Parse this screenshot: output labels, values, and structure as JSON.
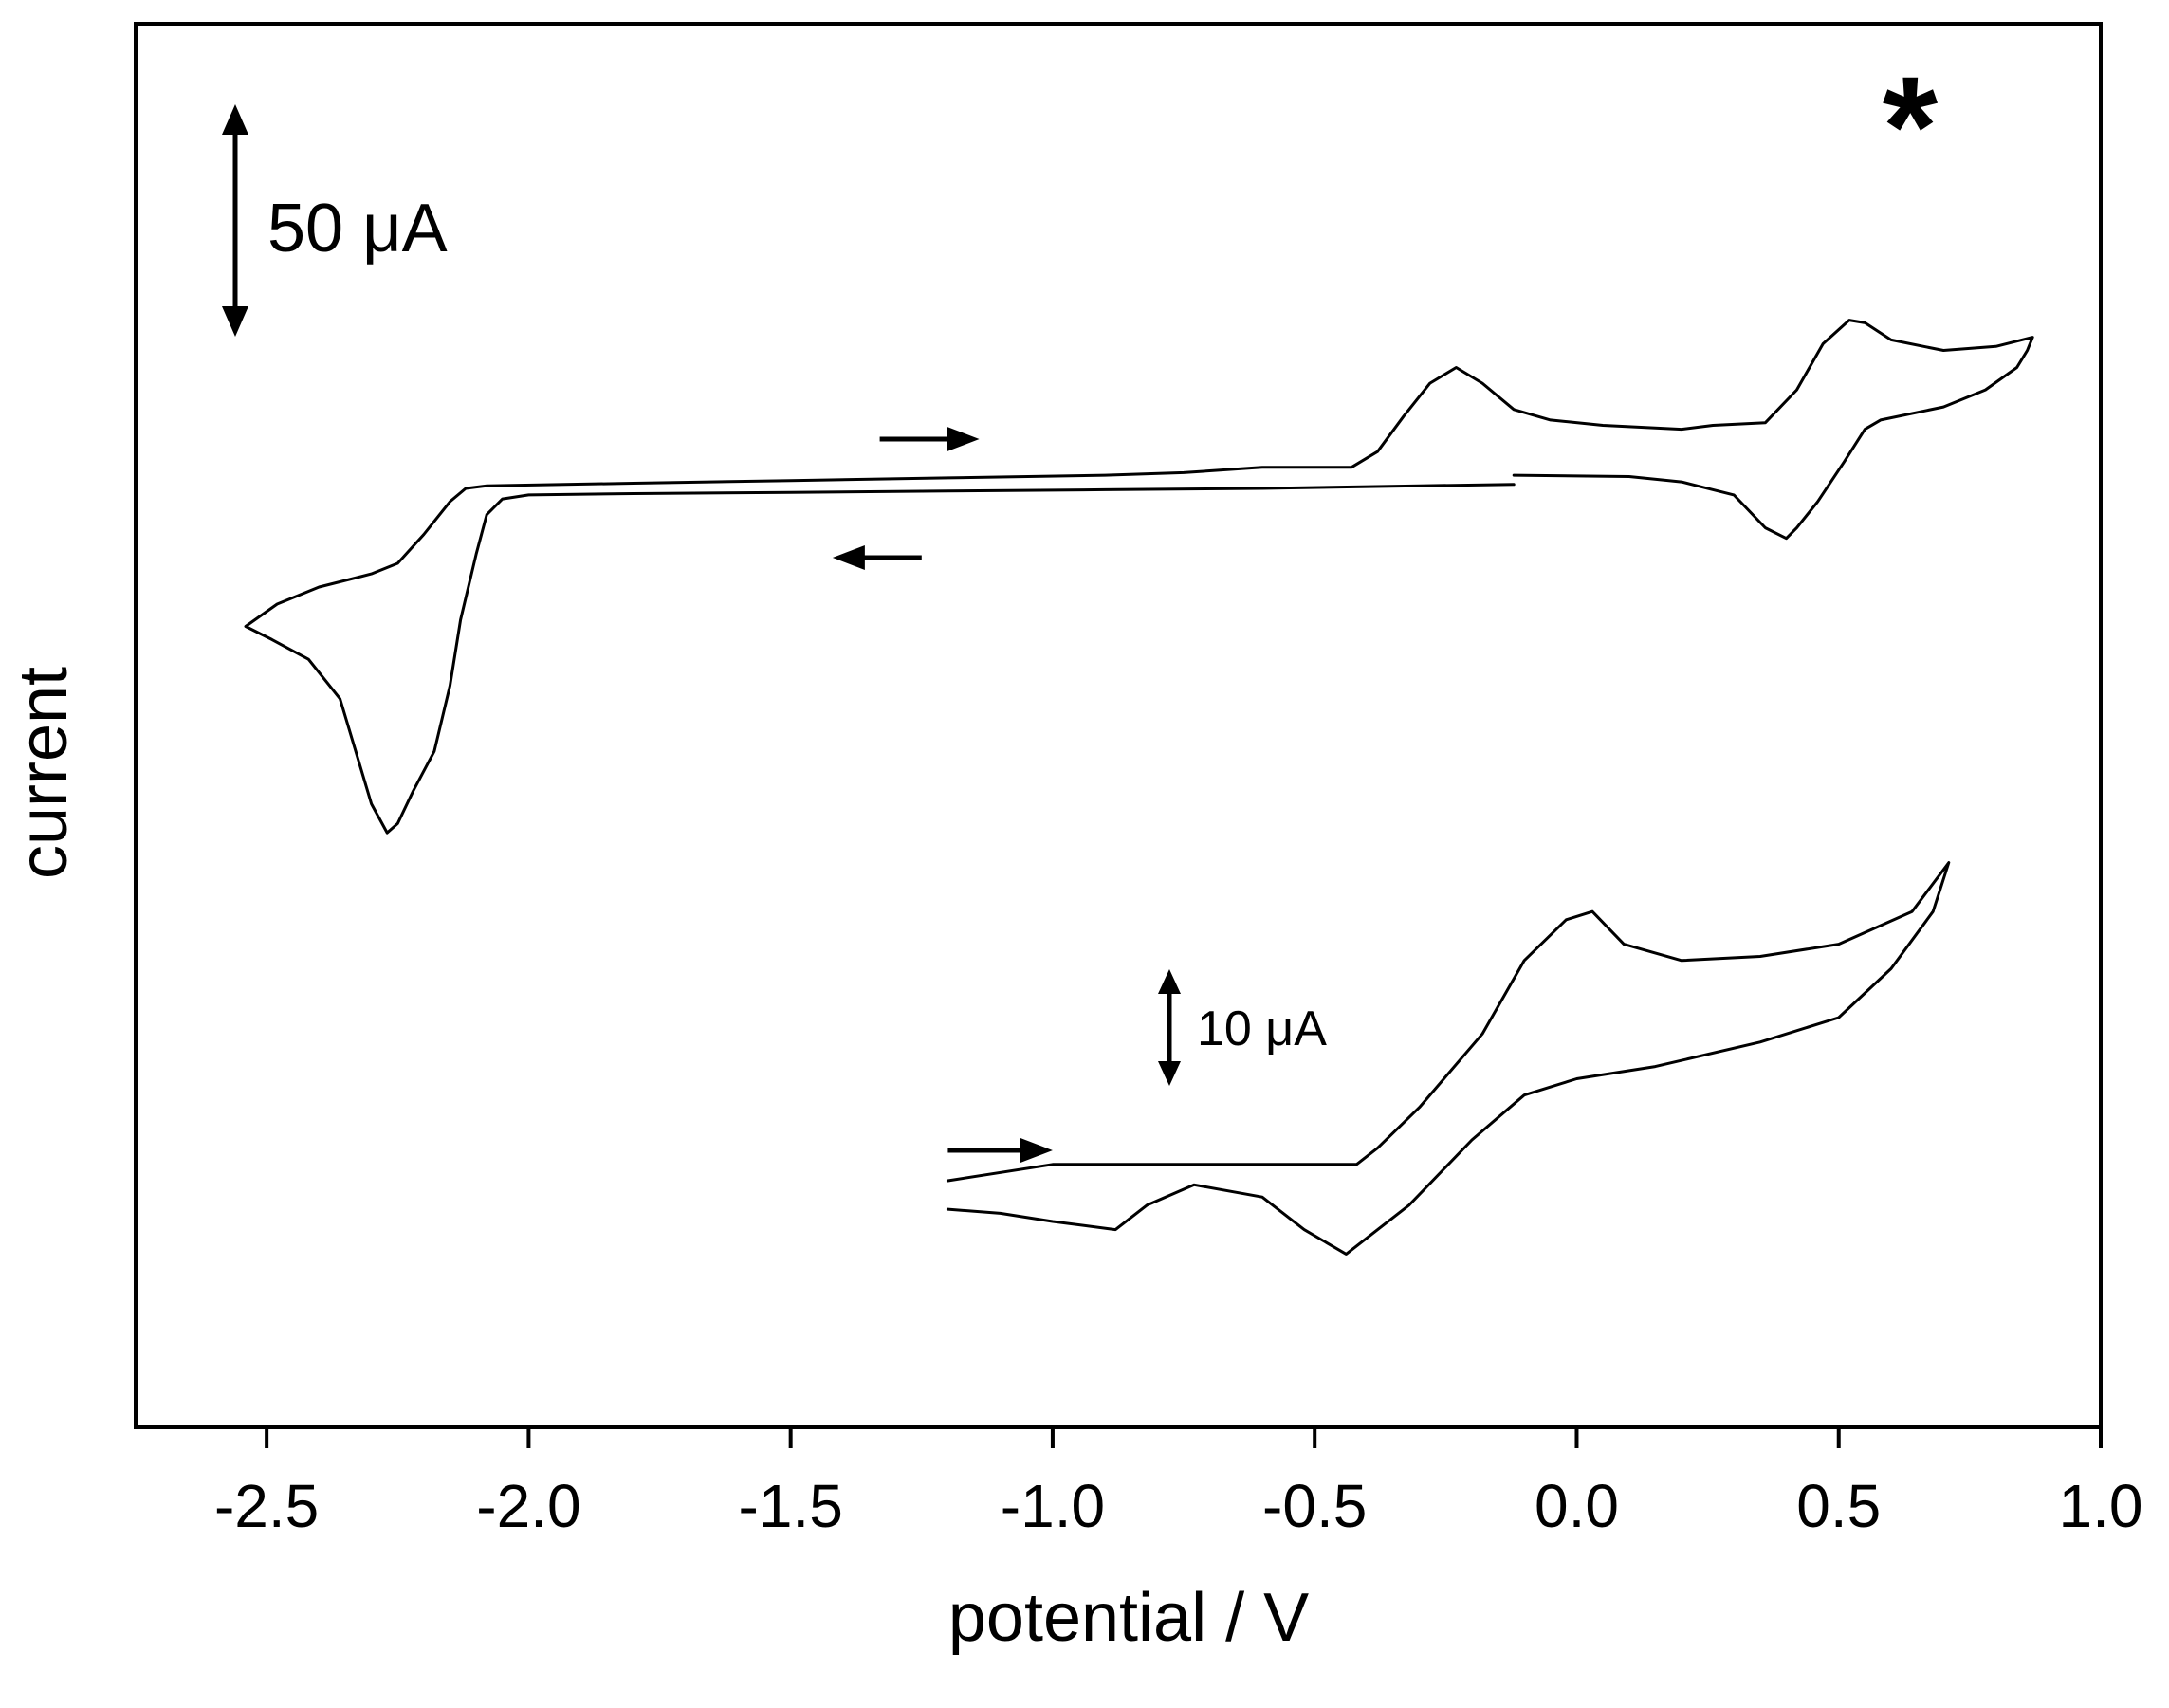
{
  "chart_data": {
    "type": "line",
    "xlabel": "potential / V",
    "ylabel": "current",
    "xlim": [
      -2.75,
      1.0
    ],
    "xticks": [
      "-2.5",
      "-2.0",
      "-1.5",
      "-1.0",
      "-0.5",
      "0.0",
      "0.5",
      "1.0"
    ],
    "y_ticks_shown": false,
    "grid": false,
    "scale_bars": [
      {
        "label": "50 μA",
        "applies_to": "upper trace"
      },
      {
        "label": "10 μA",
        "applies_to": "lower trace"
      }
    ],
    "annotations": [
      {
        "text": "*",
        "x": 0.6,
        "note": "marks the oxidation peak near 0.52 V on the upper trace"
      }
    ],
    "arrows": [
      {
        "direction": "right",
        "trace": "upper",
        "x_from": -1.33,
        "x_to": -1.14
      },
      {
        "direction": "left",
        "trace": "upper",
        "x_from": -1.42,
        "x_to": -1.25
      },
      {
        "direction": "right",
        "trace": "lower",
        "x_from": -1.2,
        "x_to": -1.0
      }
    ],
    "series": [
      {
        "points": [
          [
            -0.12,
            3
          ],
          [
            -0.3,
            2
          ],
          [
            -0.6,
            0
          ],
          [
            -0.9,
            -1
          ],
          [
            -1.2,
            -2
          ],
          [
            -1.5,
            -3
          ],
          [
            -1.8,
            -4
          ],
          [
            -2.0,
            -5
          ],
          [
            -2.05,
            -8
          ],
          [
            -2.08,
            -20
          ],
          [
            -2.1,
            -50
          ],
          [
            -2.13,
            -100
          ],
          [
            -2.15,
            -150
          ],
          [
            -2.18,
            -200
          ],
          [
            -2.22,
            -230
          ],
          [
            -2.25,
            -255
          ],
          [
            -2.27,
            -262
          ],
          [
            -2.3,
            -240
          ],
          [
            -2.33,
            -200
          ],
          [
            -2.36,
            -160
          ],
          [
            -2.42,
            -130
          ],
          [
            -2.49,
            -115
          ],
          [
            -2.54,
            -105
          ],
          [
            -2.48,
            -88
          ],
          [
            -2.4,
            -75
          ],
          [
            -2.3,
            -65
          ],
          [
            -2.25,
            -57
          ],
          [
            -2.2,
            -35
          ],
          [
            -2.17,
            -20
          ],
          [
            -2.15,
            -10
          ],
          [
            -2.12,
            0
          ],
          [
            -2.08,
            2
          ],
          [
            -1.8,
            4
          ],
          [
            -1.5,
            6
          ],
          [
            -1.2,
            8
          ],
          [
            -0.9,
            10
          ],
          [
            -0.75,
            12
          ],
          [
            -0.6,
            16
          ],
          [
            -0.55,
            16
          ],
          [
            -0.43,
            16
          ],
          [
            -0.38,
            28
          ],
          [
            -0.33,
            55
          ],
          [
            -0.28,
            80
          ],
          [
            -0.23,
            92
          ],
          [
            -0.18,
            80
          ],
          [
            -0.12,
            60
          ],
          [
            -0.05,
            52
          ],
          [
            0.05,
            48
          ],
          [
            0.2,
            45
          ],
          [
            0.26,
            48
          ],
          [
            0.36,
            50
          ],
          [
            0.42,
            75
          ],
          [
            0.47,
            110
          ],
          [
            0.52,
            128
          ],
          [
            0.55,
            126
          ],
          [
            0.6,
            113
          ],
          [
            0.7,
            105
          ],
          [
            0.8,
            108
          ],
          [
            0.87,
            115
          ],
          [
            0.86,
            105
          ],
          [
            0.84,
            92
          ],
          [
            0.78,
            75
          ],
          [
            0.7,
            62
          ],
          [
            0.58,
            52
          ],
          [
            0.55,
            45
          ],
          [
            0.51,
            20
          ],
          [
            0.46,
            -10
          ],
          [
            0.42,
            -30
          ],
          [
            0.4,
            -38
          ],
          [
            0.36,
            -30
          ],
          [
            0.3,
            -5
          ],
          [
            0.2,
            5
          ],
          [
            0.1,
            9
          ],
          [
            -0.12,
            10
          ]
        ]
      },
      {
        "points": [
          [
            -1.2,
            0
          ],
          [
            -1.0,
            2
          ],
          [
            -0.6,
            2
          ],
          [
            -0.42,
            2
          ],
          [
            -0.38,
            4
          ],
          [
            -0.3,
            9
          ],
          [
            -0.18,
            18
          ],
          [
            -0.1,
            27
          ],
          [
            -0.02,
            32
          ],
          [
            0.03,
            33
          ],
          [
            0.09,
            29
          ],
          [
            0.2,
            27
          ],
          [
            0.35,
            27.5
          ],
          [
            0.5,
            29
          ],
          [
            0.64,
            33
          ],
          [
            0.71,
            39
          ],
          [
            0.68,
            33
          ],
          [
            0.6,
            26
          ],
          [
            0.5,
            20
          ],
          [
            0.35,
            17
          ],
          [
            0.15,
            14
          ],
          [
            0.0,
            12.5
          ],
          [
            -0.1,
            10.5
          ],
          [
            -0.2,
            5
          ],
          [
            -0.32,
            -3
          ],
          [
            -0.44,
            -9
          ],
          [
            -0.52,
            -6
          ],
          [
            -0.6,
            -2
          ],
          [
            -0.73,
            -0.5
          ],
          [
            -0.82,
            -3
          ],
          [
            -0.88,
            -6
          ],
          [
            -1.0,
            -5
          ],
          [
            -1.1,
            -4
          ],
          [
            -1.2,
            -3.5
          ]
        ]
      }
    ]
  }
}
